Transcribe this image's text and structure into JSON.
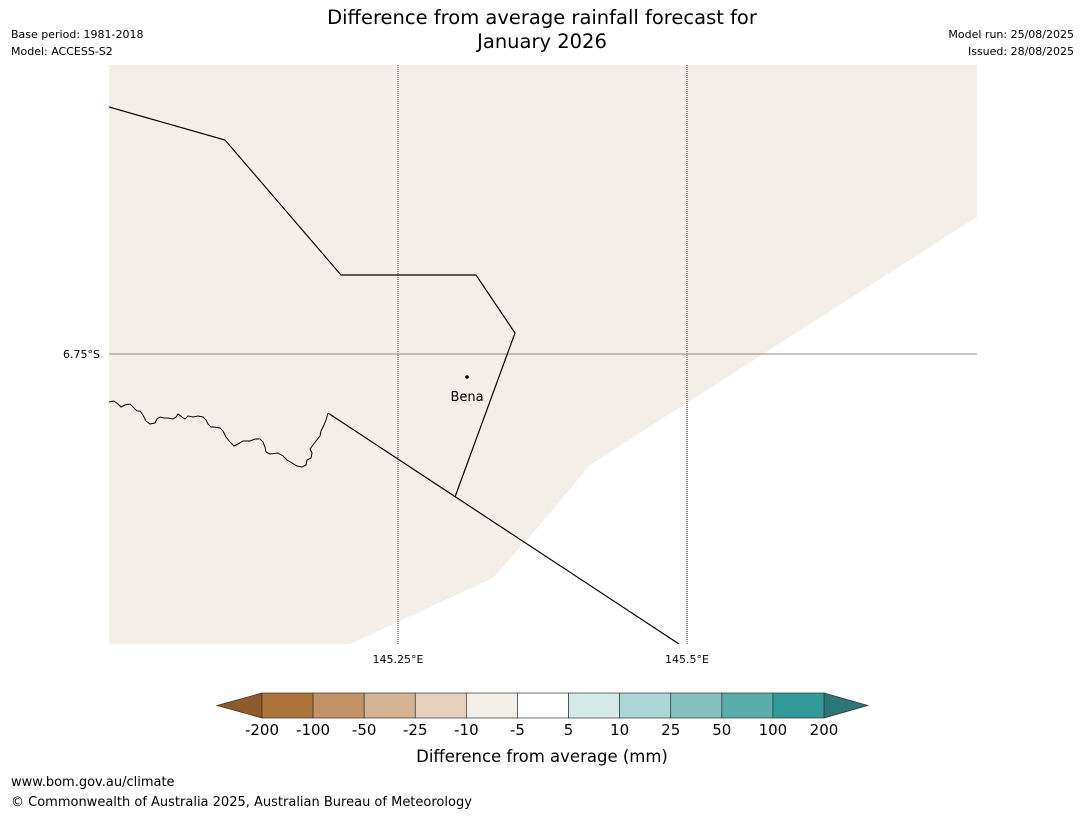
{
  "header": {
    "title_line1": "Difference from average rainfall forecast for",
    "title_line2": "January 2026",
    "base_period": "Base period: 1981-2018",
    "model": "Model: ACCESS-S2",
    "model_run": "Model run: 25/08/2025",
    "issued": "Issued: 28/08/2025"
  },
  "map": {
    "land_fill_color": "#f4eee8",
    "sea_fill_color": "#ffffff",
    "border_color": "#000000",
    "gridline_color": "#888888",
    "lat_labels": [
      "6.75°S"
    ],
    "lon_labels": [
      "145.25°E",
      "145.5°E"
    ],
    "places": [
      {
        "name": "Bena",
        "marker": "dot"
      }
    ]
  },
  "colorbar": {
    "label": "Difference from average (mm)",
    "ticks": [
      "-200",
      "-100",
      "-50",
      "-25",
      "-10",
      "-5",
      "5",
      "10",
      "25",
      "50",
      "100",
      "200"
    ],
    "under_color": "#8f5a2a",
    "over_color": "#2b7676",
    "colors": [
      "#ad743b",
      "#c39366",
      "#d4b392",
      "#e5d0be",
      "#f4eee8",
      "#ffffff",
      "#d6e9e9",
      "#acd5d5",
      "#83c0be",
      "#5aadab",
      "#319a98"
    ]
  },
  "footer": {
    "website": "www.bom.gov.au/climate",
    "copyright": "© Commonwealth of Australia 2025, Australian Bureau of Meteorology"
  }
}
